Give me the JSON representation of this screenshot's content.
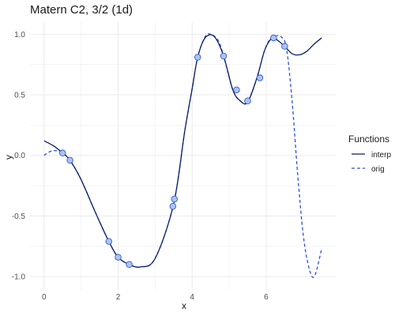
{
  "chart_data": {
    "type": "line",
    "title": "Matern C2, 3/2 (1d)",
    "xlabel": "x",
    "ylabel": "y",
    "xlim": [
      -0.38,
      7.88
    ],
    "ylim": [
      -1.11,
      1.1
    ],
    "x_ticks": [
      0,
      2,
      4,
      6
    ],
    "x_tick_labels": [
      "0",
      "2",
      "4",
      "6"
    ],
    "y_ticks": [
      -1.0,
      -0.5,
      0.0,
      0.5,
      1.0
    ],
    "y_tick_labels": [
      "-1.0",
      "-0.5",
      "0.0",
      "0.5",
      "1.0"
    ],
    "grid": true,
    "legend": {
      "title": "Functions",
      "placement": "right"
    },
    "colors": {
      "interp": "#0a1f6b",
      "orig": "#2f4fe0",
      "points_fill": "#a9c4f5",
      "points_stroke": "#3a5bbf",
      "grid": "#ebebeb"
    },
    "series": [
      {
        "name": "interp",
        "style": "solid",
        "x": [
          0.0,
          0.25,
          0.5,
          0.7,
          1.0,
          1.4,
          1.75,
          2.0,
          2.3,
          2.6,
          3.0,
          3.5,
          3.8,
          4.0,
          4.15,
          4.35,
          4.6,
          4.85,
          5.1,
          5.3,
          5.5,
          5.75,
          5.95,
          6.1,
          6.2,
          6.35,
          6.5,
          6.7,
          6.9,
          7.1,
          7.3,
          7.5
        ],
        "y": [
          0.12,
          0.08,
          0.02,
          -0.04,
          -0.2,
          -0.48,
          -0.71,
          -0.84,
          -0.9,
          -0.92,
          -0.85,
          -0.4,
          0.2,
          0.55,
          0.81,
          0.97,
          0.98,
          0.82,
          0.54,
          0.45,
          0.44,
          0.64,
          0.86,
          0.95,
          0.97,
          0.94,
          0.9,
          0.84,
          0.83,
          0.86,
          0.92,
          0.97
        ]
      },
      {
        "name": "orig",
        "style": "dashed",
        "x": [
          0.0,
          0.15,
          0.3,
          0.5,
          0.7,
          1.0,
          1.4,
          1.75,
          2.0,
          2.3,
          2.6,
          3.0,
          3.5,
          3.8,
          4.0,
          4.15,
          4.35,
          4.5,
          4.7,
          4.85,
          5.1,
          5.3,
          5.5,
          5.75,
          5.95,
          6.1,
          6.2,
          6.4,
          6.55,
          6.7,
          6.85,
          7.0,
          7.15,
          7.3,
          7.5
        ],
        "y": [
          0.0,
          0.03,
          0.04,
          0.02,
          -0.04,
          -0.2,
          -0.48,
          -0.71,
          -0.84,
          -0.9,
          -0.92,
          -0.85,
          -0.4,
          0.2,
          0.55,
          0.81,
          0.98,
          1.0,
          0.95,
          0.82,
          0.54,
          0.45,
          0.44,
          0.64,
          0.86,
          0.96,
          0.98,
          0.98,
          0.88,
          0.45,
          -0.15,
          -0.65,
          -0.92,
          -1.0,
          -0.77
        ]
      }
    ],
    "points": {
      "x": [
        0.5,
        0.7,
        1.75,
        2.0,
        2.3,
        3.48,
        3.52,
        4.15,
        4.85,
        5.2,
        5.5,
        5.83,
        6.2,
        6.5
      ],
      "y": [
        0.02,
        -0.04,
        -0.71,
        -0.84,
        -0.9,
        -0.42,
        -0.36,
        0.81,
        0.82,
        0.54,
        0.45,
        0.64,
        0.97,
        0.9
      ]
    }
  }
}
